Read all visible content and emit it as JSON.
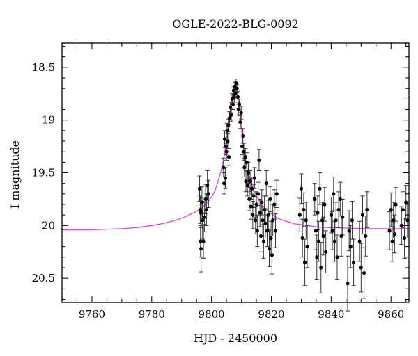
{
  "chart_data": {
    "type": "scatter",
    "title": "OGLE-2022-BLG-0092",
    "xlabel": "HJD - 2450000",
    "ylabel": "I magnitude",
    "xlim": [
      9750,
      9866
    ],
    "ylim": [
      20.73,
      18.27
    ],
    "y_inverted": true,
    "x_ticks": [
      9760,
      9780,
      9800,
      9820,
      9840,
      9860
    ],
    "y_ticks": [
      18.5,
      19,
      19.5,
      20,
      20.5
    ],
    "grid": false,
    "colors": {
      "points": "#000000",
      "model": "#e040e0",
      "axes": "#000000"
    },
    "series": [
      {
        "kind": "points_with_errorbars",
        "points": [
          [
            9796.0,
            19.65,
            0.12
          ],
          [
            9796.2,
            19.85,
            0.13
          ],
          [
            9796.3,
            20.15,
            0.15
          ],
          [
            9796.4,
            19.88,
            0.14
          ],
          [
            9796.5,
            20.22,
            0.22
          ],
          [
            9796.8,
            19.78,
            0.15
          ],
          [
            9797.0,
            19.95,
            0.18
          ],
          [
            9797.3,
            20.15,
            0.16
          ],
          [
            9797.6,
            19.92,
            0.14
          ],
          [
            9798.0,
            19.75,
            0.14
          ],
          [
            9798.3,
            19.85,
            0.15
          ],
          [
            9798.6,
            19.62,
            0.14
          ],
          [
            9799.0,
            19.7,
            0.13
          ],
          [
            9804.0,
            19.45,
            0.09
          ],
          [
            9804.2,
            19.6,
            0.1
          ],
          [
            9804.4,
            19.18,
            0.08
          ],
          [
            9804.6,
            19.55,
            0.1
          ],
          [
            9804.8,
            19.25,
            0.08
          ],
          [
            9805.0,
            19.3,
            0.08
          ],
          [
            9805.2,
            19.1,
            0.07
          ],
          [
            9805.4,
            19.2,
            0.07
          ],
          [
            9805.6,
            19.05,
            0.06
          ],
          [
            9805.8,
            19.35,
            0.08
          ],
          [
            9806.0,
            18.98,
            0.06
          ],
          [
            9806.3,
            18.88,
            0.05
          ],
          [
            9806.6,
            18.95,
            0.06
          ],
          [
            9806.9,
            18.8,
            0.05
          ],
          [
            9807.2,
            18.85,
            0.05
          ],
          [
            9807.4,
            18.72,
            0.04
          ],
          [
            9807.6,
            18.78,
            0.05
          ],
          [
            9807.8,
            18.68,
            0.04
          ],
          [
            9808.0,
            18.75,
            0.05
          ],
          [
            9808.2,
            18.65,
            0.04
          ],
          [
            9808.5,
            18.7,
            0.04
          ],
          [
            9808.8,
            18.78,
            0.05
          ],
          [
            9809.0,
            18.9,
            0.05
          ],
          [
            9809.3,
            18.85,
            0.05
          ],
          [
            9809.6,
            19.02,
            0.06
          ],
          [
            9809.9,
            18.93,
            0.06
          ],
          [
            9810.2,
            19.25,
            0.08
          ],
          [
            9810.5,
            19.15,
            0.07
          ],
          [
            9810.8,
            19.3,
            0.08
          ],
          [
            9811.0,
            19.45,
            0.09
          ],
          [
            9811.3,
            19.35,
            0.08
          ],
          [
            9811.5,
            19.58,
            0.1
          ],
          [
            9811.8,
            19.4,
            0.09
          ],
          [
            9812.0,
            19.62,
            0.1
          ],
          [
            9812.3,
            19.5,
            0.1
          ],
          [
            9812.6,
            19.75,
            0.11
          ],
          [
            9812.9,
            19.58,
            0.1
          ],
          [
            9813.2,
            19.82,
            0.12
          ],
          [
            9813.5,
            19.65,
            0.1
          ],
          [
            9813.8,
            19.9,
            0.13
          ],
          [
            9814.1,
            19.72,
            0.11
          ],
          [
            9814.4,
            19.55,
            0.1
          ],
          [
            9814.7,
            19.95,
            0.13
          ],
          [
            9815.0,
            19.8,
            0.12
          ],
          [
            9815.3,
            20.05,
            0.15
          ],
          [
            9815.6,
            19.7,
            0.11
          ],
          [
            9815.9,
            19.38,
            0.1
          ],
          [
            9816.2,
            19.88,
            0.13
          ],
          [
            9816.5,
            20.1,
            0.15
          ],
          [
            9816.8,
            19.78,
            0.12
          ],
          [
            9817.1,
            19.95,
            0.13
          ],
          [
            9817.4,
            20.15,
            0.16
          ],
          [
            9817.7,
            19.85,
            0.13
          ],
          [
            9818.0,
            19.98,
            0.14
          ],
          [
            9818.3,
            19.6,
            0.12
          ],
          [
            9818.6,
            20.05,
            0.15
          ],
          [
            9819.0,
            19.9,
            0.14
          ],
          [
            9819.3,
            20.22,
            0.17
          ],
          [
            9819.6,
            19.75,
            0.12
          ],
          [
            9819.9,
            20.12,
            0.16
          ],
          [
            9820.2,
            20.28,
            0.18
          ],
          [
            9820.5,
            19.95,
            0.15
          ],
          [
            9821.0,
            19.8,
            0.14
          ],
          [
            9821.4,
            20.05,
            0.16
          ],
          [
            9821.8,
            19.7,
            0.13
          ],
          [
            9829.5,
            19.9,
            0.16
          ],
          [
            9830.0,
            19.65,
            0.14
          ],
          [
            9830.4,
            20.12,
            0.18
          ],
          [
            9830.8,
            19.85,
            0.16
          ],
          [
            9831.2,
            20.35,
            0.22
          ],
          [
            9831.6,
            19.95,
            0.17
          ],
          [
            9832.0,
            20.2,
            0.2
          ],
          [
            9834.5,
            19.75,
            0.15
          ],
          [
            9834.9,
            20.05,
            0.18
          ],
          [
            9835.2,
            20.3,
            0.21
          ],
          [
            9835.5,
            19.88,
            0.16
          ],
          [
            9835.8,
            20.15,
            0.19
          ],
          [
            9836.2,
            19.65,
            0.15
          ],
          [
            9836.6,
            20.4,
            0.24
          ],
          [
            9837.0,
            19.95,
            0.17
          ],
          [
            9837.4,
            20.1,
            0.18
          ],
          [
            9837.8,
            19.8,
            0.16
          ],
          [
            9838.2,
            20.25,
            0.2
          ],
          [
            9840.0,
            19.9,
            0.17
          ],
          [
            9840.4,
            20.05,
            0.18
          ],
          [
            9840.8,
            19.7,
            0.16
          ],
          [
            9841.2,
            20.15,
            0.19
          ],
          [
            9841.6,
            19.95,
            0.17
          ],
          [
            9842.0,
            20.3,
            0.21
          ],
          [
            9842.5,
            19.85,
            0.17
          ],
          [
            9843.0,
            19.75,
            0.16
          ],
          [
            9843.4,
            20.1,
            0.19
          ],
          [
            9843.8,
            19.92,
            0.17
          ],
          [
            9845.5,
            20.55,
            0.26
          ],
          [
            9846.0,
            20.05,
            0.19
          ],
          [
            9846.5,
            20.2,
            0.2
          ],
          [
            9847.0,
            19.95,
            0.18
          ],
          [
            9847.5,
            20.35,
            0.22
          ],
          [
            9849.5,
            20.15,
            0.19
          ],
          [
            9850.0,
            20.4,
            0.23
          ],
          [
            9850.5,
            19.9,
            0.18
          ],
          [
            9851.0,
            20.45,
            0.24
          ],
          [
            9851.5,
            20.1,
            0.19
          ],
          [
            9852.0,
            19.85,
            0.17
          ],
          [
            9859.5,
            20.05,
            0.18
          ],
          [
            9860.0,
            19.85,
            0.16
          ],
          [
            9860.4,
            20.15,
            0.19
          ],
          [
            9860.8,
            19.95,
            0.17
          ],
          [
            9861.2,
            20.08,
            0.18
          ],
          [
            9861.6,
            19.8,
            0.16
          ],
          [
            9863.5,
            20.0,
            0.18
          ],
          [
            9864.0,
            19.85,
            0.17
          ],
          [
            9864.5,
            20.12,
            0.19
          ],
          [
            9865.0,
            19.78,
            0.16
          ],
          [
            9865.5,
            19.95,
            0.17
          ]
        ]
      },
      {
        "kind": "model_curve",
        "points": [
          [
            9750,
            20.04
          ],
          [
            9760,
            20.04
          ],
          [
            9765,
            20.035
          ],
          [
            9770,
            20.03
          ],
          [
            9775,
            20.02
          ],
          [
            9780,
            20.0
          ],
          [
            9784,
            19.98
          ],
          [
            9788,
            19.95
          ],
          [
            9791,
            19.92
          ],
          [
            9794,
            19.88
          ],
          [
            9796,
            19.85
          ],
          [
            9798,
            19.8
          ],
          [
            9800,
            19.73
          ],
          [
            9801,
            19.68
          ],
          [
            9802,
            19.6
          ],
          [
            9803,
            19.5
          ],
          [
            9804,
            19.38
          ],
          [
            9805,
            19.2
          ],
          [
            9806,
            18.98
          ],
          [
            9806.5,
            18.85
          ],
          [
            9807,
            18.76
          ],
          [
            9807.5,
            18.7
          ],
          [
            9808,
            18.67
          ],
          [
            9808.5,
            18.7
          ],
          [
            9809,
            18.78
          ],
          [
            9809.5,
            18.92
          ],
          [
            9810,
            19.08
          ],
          [
            9810.5,
            19.22
          ],
          [
            9811,
            19.33
          ],
          [
            9812,
            19.48
          ],
          [
            9813,
            19.58
          ],
          [
            9814,
            19.66
          ],
          [
            9815,
            19.72
          ],
          [
            9816,
            19.77
          ],
          [
            9818,
            19.84
          ],
          [
            9820,
            19.89
          ],
          [
            9822,
            19.93
          ],
          [
            9825,
            19.96
          ],
          [
            9828,
            19.985
          ],
          [
            9832,
            20.0
          ],
          [
            9836,
            20.015
          ],
          [
            9840,
            20.02
          ],
          [
            9846,
            20.025
          ],
          [
            9852,
            20.03
          ],
          [
            9858,
            20.03
          ],
          [
            9866,
            20.03
          ]
        ]
      }
    ]
  }
}
